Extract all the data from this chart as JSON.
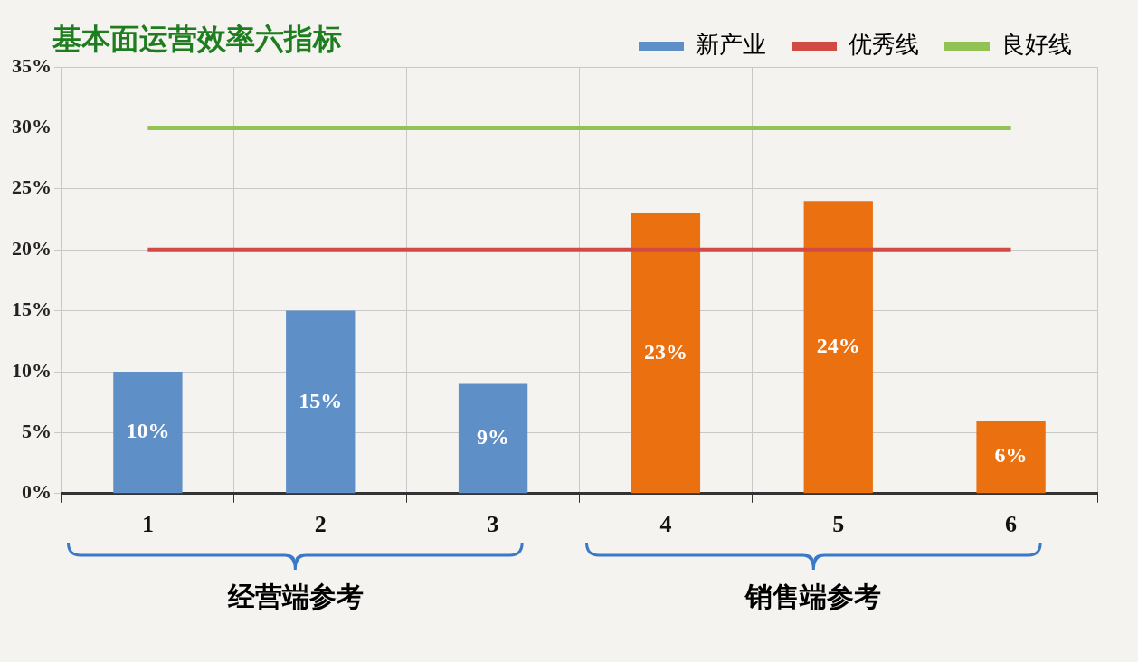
{
  "chart_data": {
    "type": "bar",
    "title": "基本面运营效率六指标",
    "categories": [
      "1",
      "2",
      "3",
      "4",
      "5",
      "6"
    ],
    "series": [
      {
        "name": "新产业",
        "color": "#5f8fc7",
        "colors": [
          "#5f8fc7",
          "#5f8fc7",
          "#5f8fc7",
          "#eb7010",
          "#eb7010",
          "#eb7010"
        ],
        "values": [
          10,
          15,
          9,
          23,
          24,
          6
        ],
        "value_labels": [
          "10%",
          "15%",
          "9%",
          "23%",
          "24%",
          "6%"
        ]
      },
      {
        "name": "优秀线",
        "type": "line",
        "color": "#d24a44",
        "values": [
          20,
          20,
          20,
          20,
          20,
          20
        ]
      },
      {
        "name": "良好线",
        "type": "line",
        "color": "#93c254",
        "values": [
          30,
          30,
          30,
          30,
          30,
          30
        ]
      }
    ],
    "ylim": [
      0,
      35
    ],
    "yticks": [
      {
        "value": 0,
        "label": "0%"
      },
      {
        "value": 5,
        "label": "5%"
      },
      {
        "value": 10,
        "label": "10%"
      },
      {
        "value": 15,
        "label": "15%"
      },
      {
        "value": 20,
        "label": "20%"
      },
      {
        "value": 25,
        "label": "25%"
      },
      {
        "value": 30,
        "label": "30%"
      },
      {
        "value": 35,
        "label": "35%"
      }
    ],
    "grid": true,
    "legend": "top right",
    "marker": "none",
    "annotations": [
      "经营端参考",
      "销售端参考"
    ]
  }
}
